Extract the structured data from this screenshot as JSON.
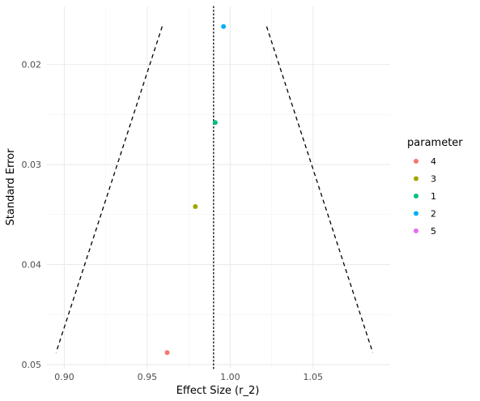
{
  "chart_data": {
    "type": "scatter",
    "title": "",
    "xlabel": "Effect Size (r_2)",
    "ylabel": "Standard Error",
    "xlim": [
      0.8895,
      1.0965
    ],
    "ylim": [
      0.0142,
      0.0504
    ],
    "y_reversed": true,
    "x_ticks": [
      0.9,
      0.95,
      1.0,
      1.05
    ],
    "x_tick_labels": [
      "0.90",
      "0.95",
      "1.00",
      "1.05"
    ],
    "y_ticks": [
      0.02,
      0.03,
      0.04,
      0.05
    ],
    "y_tick_labels": [
      "0.02",
      "0.03",
      "0.04",
      "0.05"
    ],
    "grid": true,
    "legend": {
      "title": "parameter",
      "placement": "right",
      "entries": [
        {
          "label": "4",
          "color": "#F8766D"
        },
        {
          "label": "3",
          "color": "#A3A500"
        },
        {
          "label": "1",
          "color": "#00BF7D"
        },
        {
          "label": "2",
          "color": "#00B0F6"
        },
        {
          "label": "5",
          "color": "#E76BF3"
        }
      ]
    },
    "points": [
      {
        "parameter": "4",
        "x": 0.962,
        "y": 0.0488,
        "color": "#F8766D"
      },
      {
        "parameter": "3",
        "x": 0.979,
        "y": 0.0342,
        "color": "#A3A500"
      },
      {
        "parameter": "1",
        "x": 0.991,
        "y": 0.0258,
        "color": "#00BF7D"
      },
      {
        "parameter": "2",
        "x": 0.996,
        "y": 0.0162,
        "color": "#00B0F6"
      }
    ],
    "reference_line": {
      "x": 0.99,
      "style": "dotted"
    },
    "funnel_left": [
      {
        "x": 0.959,
        "y": 0.0162
      },
      {
        "x": 0.895,
        "y": 0.0488
      }
    ],
    "funnel_right": [
      {
        "x": 1.022,
        "y": 0.0162
      },
      {
        "x": 1.086,
        "y": 0.0488
      }
    ]
  }
}
